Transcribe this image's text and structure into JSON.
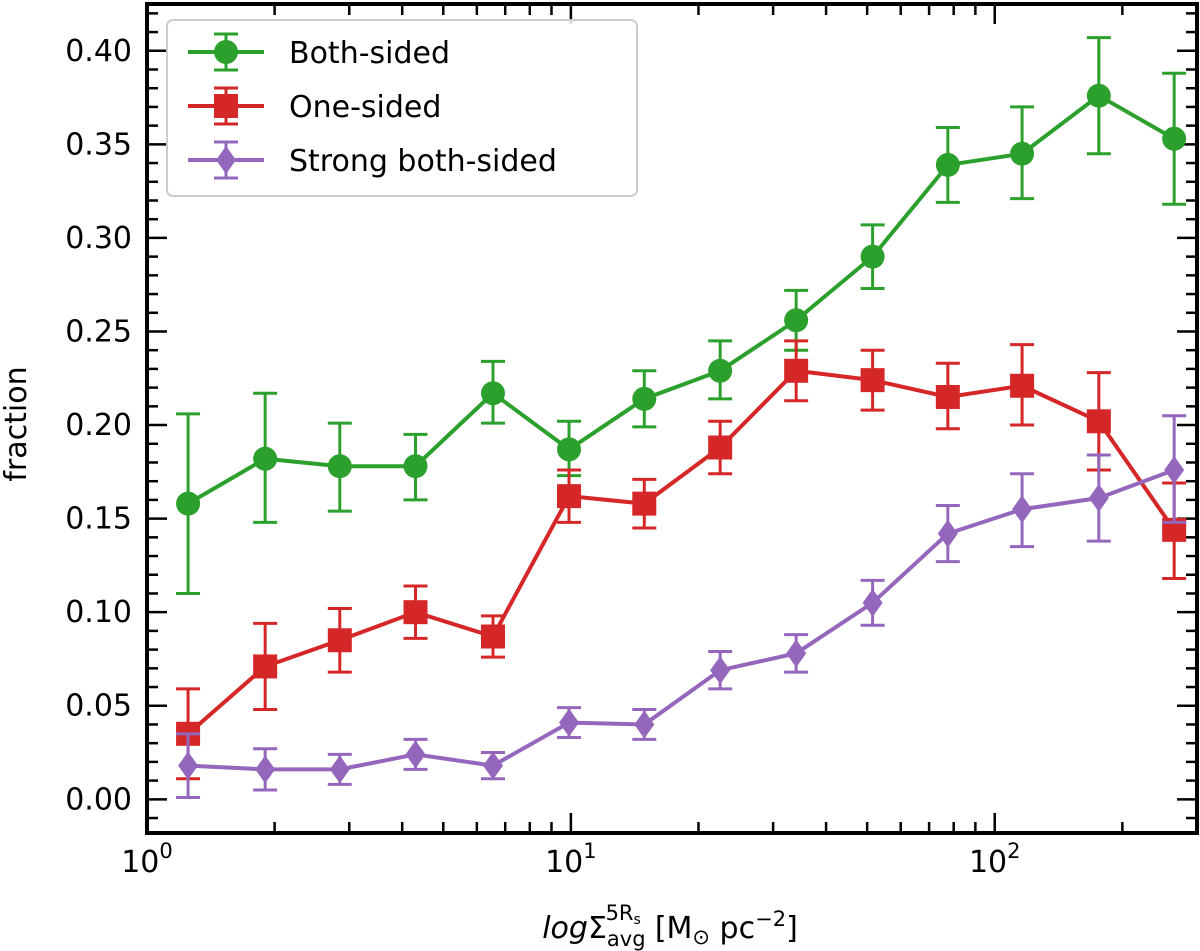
{
  "chart_data": {
    "type": "line",
    "x_scale": "log",
    "xlim": [
      1.0,
      300.0
    ],
    "ylim": [
      -0.018,
      0.425
    ],
    "ylabel": "fraction",
    "xlabel": {
      "prefix": "log",
      "symbol": "Σ",
      "superscript": "5R",
      "superscript_sub": "s",
      "subscript": "avg",
      "units_open": "[M",
      "units_sun": "⊙",
      "units_mid": " pc",
      "units_exp": "−2",
      "units_close": "]"
    },
    "x_ticks": [
      {
        "value": 1,
        "base": "10",
        "exp": "0"
      },
      {
        "value": 10,
        "base": "10",
        "exp": "1"
      },
      {
        "value": 100,
        "base": "10",
        "exp": "2"
      }
    ],
    "y_ticks": [
      "0.00",
      "0.05",
      "0.10",
      "0.15",
      "0.20",
      "0.25",
      "0.30",
      "0.35",
      "0.40"
    ],
    "legend_position": "top-left",
    "x": [
      1.25,
      1.9,
      2.85,
      4.3,
      6.55,
      9.9,
      14.9,
      22.5,
      34.0,
      51.5,
      77.5,
      116.0,
      176.0,
      265.0
    ],
    "series": [
      {
        "name": "Both-sided",
        "color": "#2ca02c",
        "marker": "circle",
        "values": [
          0.158,
          0.182,
          0.178,
          0.178,
          0.217,
          0.187,
          0.214,
          0.229,
          0.256,
          0.29,
          0.339,
          0.345,
          0.376,
          0.353
        ],
        "err_low": [
          0.048,
          0.034,
          0.024,
          0.018,
          0.016,
          0.014,
          0.015,
          0.015,
          0.016,
          0.017,
          0.02,
          0.024,
          0.031,
          0.035
        ],
        "err_high": [
          0.048,
          0.035,
          0.023,
          0.017,
          0.017,
          0.015,
          0.015,
          0.016,
          0.016,
          0.017,
          0.02,
          0.025,
          0.031,
          0.035
        ]
      },
      {
        "name": "One-sided",
        "color": "#d62728",
        "marker": "square",
        "values": [
          0.035,
          0.071,
          0.085,
          0.1,
          0.087,
          0.162,
          0.158,
          0.188,
          0.229,
          0.224,
          0.215,
          0.221,
          0.202,
          0.144
        ],
        "err_low": [
          0.024,
          0.023,
          0.017,
          0.014,
          0.011,
          0.014,
          0.013,
          0.014,
          0.016,
          0.016,
          0.017,
          0.021,
          0.026,
          0.026
        ],
        "err_high": [
          0.024,
          0.023,
          0.017,
          0.014,
          0.011,
          0.014,
          0.013,
          0.014,
          0.016,
          0.016,
          0.018,
          0.022,
          0.026,
          0.025
        ]
      },
      {
        "name": "Strong both-sided",
        "color": "#9467bd",
        "marker": "diamond",
        "values": [
          0.018,
          0.016,
          0.016,
          0.024,
          0.018,
          0.041,
          0.04,
          0.069,
          0.078,
          0.105,
          0.142,
          0.155,
          0.161,
          0.176
        ],
        "err_low": [
          0.017,
          0.011,
          0.008,
          0.008,
          0.007,
          0.008,
          0.008,
          0.01,
          0.01,
          0.012,
          0.015,
          0.02,
          0.023,
          0.028
        ],
        "err_high": [
          0.017,
          0.011,
          0.008,
          0.008,
          0.007,
          0.008,
          0.008,
          0.01,
          0.01,
          0.012,
          0.015,
          0.019,
          0.023,
          0.029
        ]
      }
    ]
  }
}
